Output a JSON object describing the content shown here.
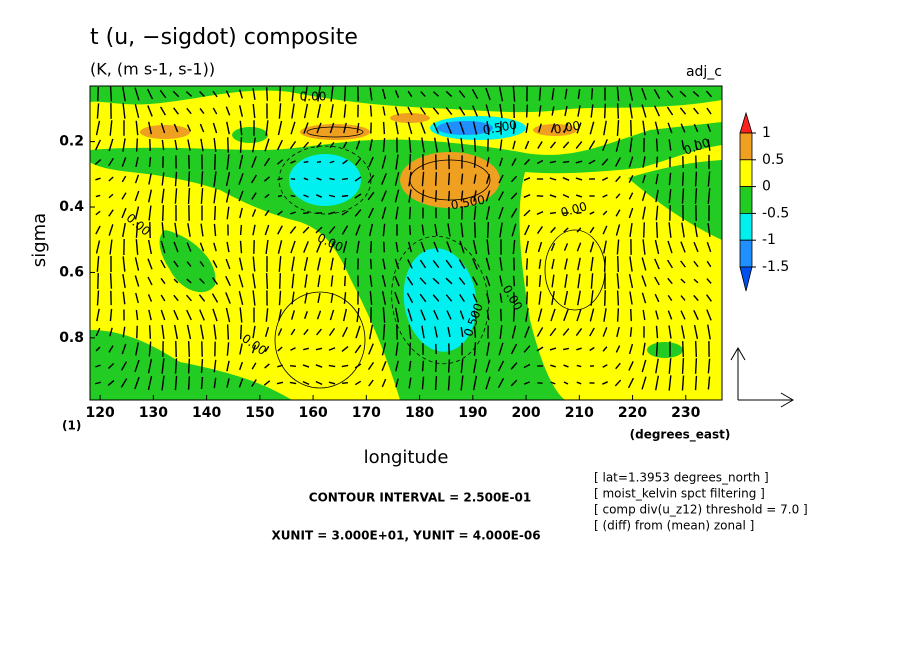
{
  "chart_data": {
    "type": "contour",
    "title": "t (u, −sigdot) composite",
    "subtitle": "(K, (m s-1, s-1))",
    "tag": "adj_c",
    "xlabel": "longitude",
    "xunit_label": "(degrees_east)",
    "ylabel": "sigma",
    "level_label": "(1)",
    "xlim": [
      118.1,
      236.8
    ],
    "xticks": [
      120,
      130,
      140,
      150,
      160,
      170,
      180,
      190,
      200,
      210,
      220,
      230
    ],
    "ylim": [
      0.03,
      0.99
    ],
    "yticks": [
      0.2,
      0.4,
      0.6,
      0.8
    ],
    "colorbar": {
      "levels": [
        1,
        0.5,
        0,
        -0.5,
        -1,
        -1.5
      ],
      "colors": [
        "#ff2020",
        "#f0a020",
        "#ffff00",
        "#22cc22",
        "#00f0f0",
        "#2090ff",
        "#0050f0"
      ]
    },
    "contour_labels": [
      "0.00",
      "0.500",
      "0.00",
      "0.00",
      "0.00",
      "0.00",
      "0.500",
      "0.00",
      "0.00",
      "0.500",
      "0.00"
    ],
    "contour_interval": "CONTOUR INTERVAL = 2.500E-01",
    "units_note": "XUNIT = 3.000E+01, YUNIT = 4.000E-06",
    "notes": [
      "[ lat=1.3953 degrees_north ]",
      "[ moist_kelvin spct filtering ]",
      "[ comp div(u_z12) threshold = 7.0 ]",
      "[ (diff) from (mean) zonal ]"
    ]
  }
}
